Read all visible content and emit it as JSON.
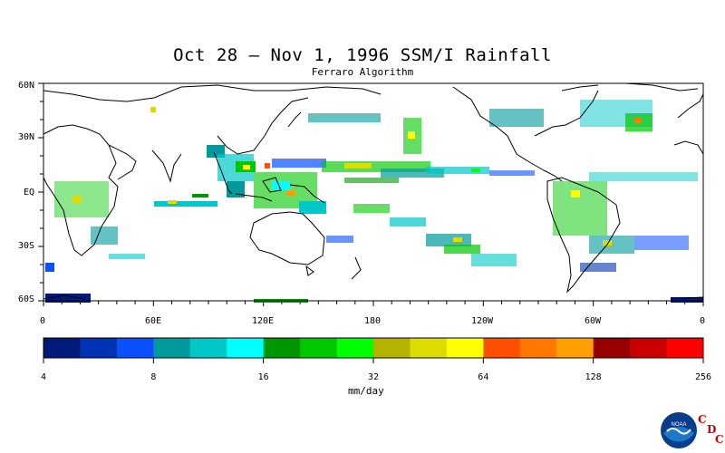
{
  "title": "Oct 28 – Nov 1, 1996 SSM/I Rainfall",
  "subtitle": "Ferraro Algorithm",
  "lat_labels": [
    "60N",
    "30N",
    "EQ",
    "30S",
    "60S"
  ],
  "lon_labels": [
    "0",
    "60E",
    "120E",
    "180",
    "120W",
    "60W",
    "0"
  ],
  "colorbar": {
    "colors": [
      "#001a7a",
      "#0033b3",
      "#0a50ff",
      "#009a9a",
      "#00c8c8",
      "#00ffff",
      "#009600",
      "#00c800",
      "#00ff00",
      "#b4b400",
      "#dcdc00",
      "#ffff00",
      "#ff5000",
      "#ff7800",
      "#ffa000",
      "#960000",
      "#c80000",
      "#ff0000"
    ],
    "labels": [
      "4",
      "8",
      "16",
      "32",
      "64",
      "128",
      "256"
    ],
    "units": "mm/day"
  },
  "logo": {
    "icon": "noaa-logo",
    "text": "NOAA",
    "cdc_letters": [
      "C",
      "D",
      "C"
    ]
  }
}
